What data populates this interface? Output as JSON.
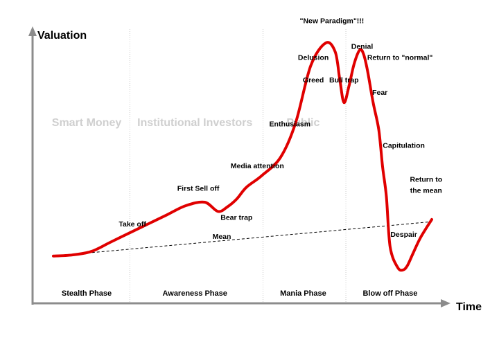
{
  "chart_data": {
    "type": "line",
    "title": "",
    "xlabel": "Time",
    "ylabel": "Valuation",
    "xlim": [
      0,
      100
    ],
    "ylim": [
      0,
      100
    ],
    "grid": false,
    "colors": {
      "curve": "#e00000",
      "mean": "#000000",
      "axis": "#8c8c8c",
      "divider": "#cccccc",
      "group_label": "#cfcfcf"
    },
    "series": [
      {
        "x": [
          0,
          5,
          10,
          15,
          20,
          25,
          30,
          35,
          40,
          43.5,
          46,
          48.5,
          51,
          55,
          60,
          64,
          68,
          72,
          74.5,
          75.7,
          76.8,
          78.1,
          79.5,
          81,
          82,
          83,
          84.5,
          86,
          87,
          88,
          89,
          91,
          92.5,
          93.6,
          95,
          97,
          100
        ],
        "y": [
          7,
          7.5,
          9,
          13,
          17,
          21,
          25,
          29,
          30.5,
          26.5,
          28.5,
          32,
          37,
          42,
          50,
          65,
          90,
          100,
          96,
          84,
          74,
          81,
          91,
          97,
          95,
          88,
          74,
          62,
          46,
          33,
          11,
          2,
          1,
          3,
          8,
          15,
          23
        ]
      },
      {
        "x": [
          0,
          100
        ],
        "y": [
          7,
          22
        ]
      }
    ],
    "dividers_x": [
      20.2,
      55.4,
      77.3
    ],
    "groups": [
      {
        "label": "Smart Money",
        "x": 8.8
      },
      {
        "label": "Institutional Investors",
        "x": 37.4
      },
      {
        "label": "Public",
        "x": 66
      }
    ],
    "phases": [
      {
        "label": "Stealth Phase",
        "x": 8.8
      },
      {
        "label": "Awareness Phase",
        "x": 37.4
      },
      {
        "label": "Mania Phase",
        "x": 66
      },
      {
        "label": "Blow off Phase",
        "x": 89
      }
    ],
    "annotations": [
      {
        "label": "Take off",
        "x": 20.9,
        "y": 20,
        "bold": false
      },
      {
        "label": "First Sell off",
        "x": 38.3,
        "y": 35.5,
        "bold": false
      },
      {
        "label": "Bear trap",
        "x": 48.4,
        "y": 22.8,
        "bold": false
      },
      {
        "label": "Mean",
        "x": 44.5,
        "y": 14.5,
        "bold": false
      },
      {
        "label": "Media attention",
        "x": 53.9,
        "y": 45.3,
        "bold": false
      },
      {
        "label": "Enthusiasm",
        "x": 62.5,
        "y": 63.6,
        "bold": false
      },
      {
        "label": "Greed",
        "x": 68.7,
        "y": 82.8,
        "bold": false
      },
      {
        "label": "Delusion",
        "x": 68.7,
        "y": 92.6,
        "bold": false
      },
      {
        "label": "\"New Paradigm\"!!!",
        "x": 73.6,
        "y": 108.6,
        "bold": false
      },
      {
        "label": "Denial",
        "x": 81.6,
        "y": 97.5,
        "bold": false
      },
      {
        "label": "Bull trap",
        "x": 76.8,
        "y": 82.8,
        "bold": false
      },
      {
        "label": "Return to \"normal\"",
        "x": 91.6,
        "y": 92.6,
        "bold": true
      },
      {
        "label": "Fear",
        "x": 86.3,
        "y": 77.3,
        "bold": false
      },
      {
        "label": "Capitulation",
        "x": 92.6,
        "y": 54.3,
        "bold": false
      },
      {
        "label": "Return to",
        "x": 98.5,
        "y": 39.5,
        "bold": false
      },
      {
        "label": "the mean",
        "x": 98.5,
        "y": 34.6,
        "bold": false
      },
      {
        "label": "Despair",
        "x": 92.6,
        "y": 15.4,
        "bold": false
      }
    ]
  }
}
